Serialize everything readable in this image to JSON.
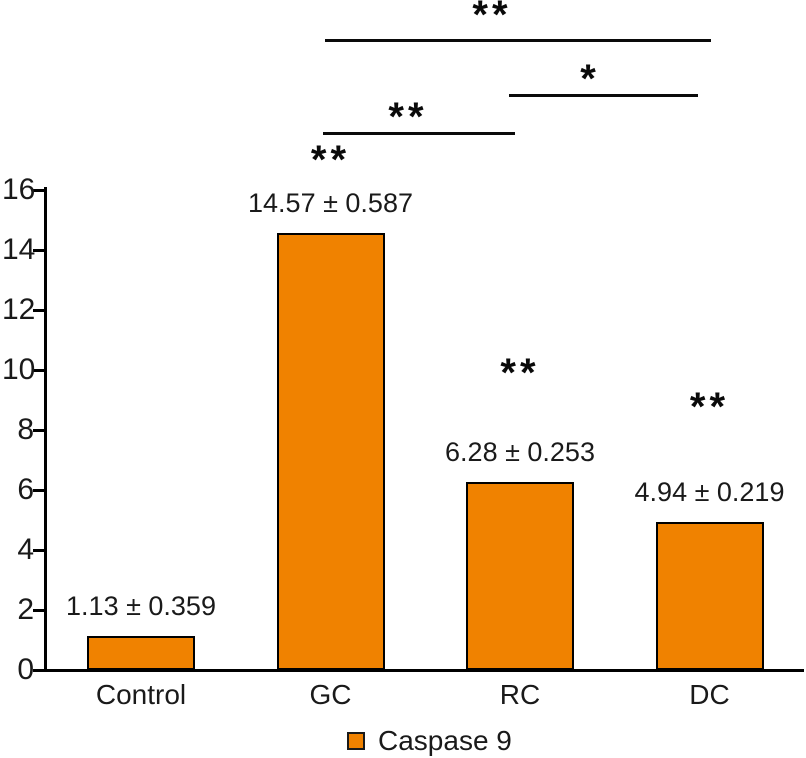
{
  "chart_data": {
    "type": "bar",
    "title": "",
    "xlabel": "",
    "ylabel": "",
    "categories": [
      "Control",
      "GC",
      "RC",
      "DC"
    ],
    "series": [
      {
        "name": "Caspase 9",
        "values": [
          1.13,
          14.57,
          6.28,
          4.94
        ],
        "errors": [
          0.359,
          0.587,
          0.253,
          0.219
        ]
      }
    ],
    "bar_labels": [
      "1.13 ± 0.359",
      "14.57 ± 0.587",
      "6.28 ± 0.253",
      "4.94 ± 0.219"
    ],
    "ylim": [
      0,
      16
    ],
    "yticks": [
      0,
      2,
      4,
      6,
      8,
      10,
      12,
      14,
      16
    ],
    "grid": false,
    "legend": {
      "position": "bottom",
      "label": "Caspase 9"
    },
    "colors": {
      "bar_fill": "#F08200",
      "bar_border": "#000000",
      "axis": "#000000",
      "text": "#1a1a1a"
    },
    "significance": {
      "bar_markers": [
        {
          "category": "GC",
          "label": "**"
        },
        {
          "category": "RC",
          "label": "**"
        },
        {
          "category": "DC",
          "label": "**"
        }
      ],
      "brackets": [
        {
          "from": "GC",
          "to": "DC",
          "label": "**"
        },
        {
          "from": "RC",
          "to": "DC",
          "label": "*"
        },
        {
          "from": "GC",
          "to": "RC",
          "label": "**"
        }
      ]
    }
  }
}
